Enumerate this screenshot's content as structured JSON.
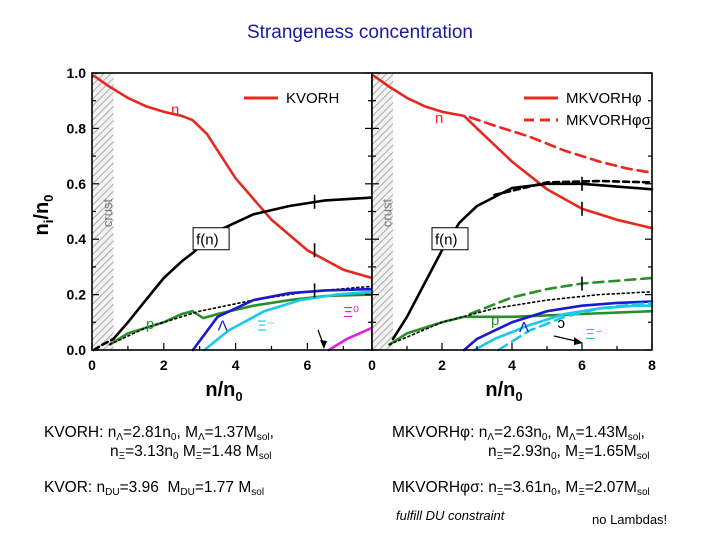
{
  "title": "Strangeness concentration",
  "chart_data": [
    {
      "type": "line",
      "panel": "left",
      "xlabel": "n/n0",
      "ylabel": "ni/n0",
      "xlim": [
        0,
        7.8
      ],
      "ylim": [
        0.0,
        1.0
      ],
      "xticks": [
        0,
        2,
        4,
        6
      ],
      "yticks": [
        0.0,
        0.2,
        0.4,
        0.6,
        0.8,
        1.0
      ],
      "ytick_labels": [
        "0.0",
        "0.2",
        "0.4",
        "0.6",
        "0.8",
        "1.0"
      ],
      "crust_band": [
        0.0,
        0.6
      ],
      "crust_label": "crust",
      "legend": [
        {
          "label": "KVORH",
          "color": "#e8281e"
        }
      ],
      "series": [
        {
          "name": "n",
          "color": "#e8281e",
          "dash": "",
          "x": [
            0.05,
            0.5,
            1.0,
            1.5,
            2.0,
            2.5,
            2.8,
            3.2,
            4.0,
            5.0,
            6.0,
            7.0,
            7.8
          ],
          "y": [
            0.99,
            0.95,
            0.91,
            0.88,
            0.86,
            0.845,
            0.83,
            0.78,
            0.62,
            0.47,
            0.36,
            0.29,
            0.26
          ]
        },
        {
          "name": "f(n)",
          "color": "#000000",
          "dash": "",
          "x": [
            0.6,
            1.0,
            1.5,
            2.0,
            2.5,
            2.8,
            3.5,
            4.5,
            5.5,
            6.5,
            7.8
          ],
          "y": [
            0.04,
            0.1,
            0.18,
            0.26,
            0.32,
            0.35,
            0.43,
            0.49,
            0.52,
            0.54,
            0.55
          ]
        },
        {
          "name": "f(n) continuation",
          "color": "#000000",
          "dash": "6 4",
          "x": [
            0.05,
            0.3,
            0.6
          ],
          "y": [
            0.0,
            0.02,
            0.04
          ]
        },
        {
          "name": "p",
          "color": "#2a8f2a",
          "dash": "",
          "x": [
            0.5,
            1.0,
            2.0,
            2.5,
            2.8,
            3.1,
            3.5,
            4.5,
            5.5,
            6.5,
            7.8
          ],
          "y": [
            0.02,
            0.06,
            0.1,
            0.13,
            0.14,
            0.115,
            0.13,
            0.16,
            0.18,
            0.195,
            0.2
          ]
        },
        {
          "name": "KVOR p",
          "color": "#000000",
          "dash": "2 3",
          "x": [
            0.5,
            1.5,
            3.0,
            4.5,
            6.0,
            7.8
          ],
          "y": [
            0.02,
            0.08,
            0.14,
            0.18,
            0.21,
            0.23
          ]
        },
        {
          "name": "Λ",
          "color": "#1a1acc",
          "dash": "",
          "x": [
            2.81,
            3.5,
            4.5,
            5.5,
            6.5,
            7.8
          ],
          "y": [
            0.0,
            0.12,
            0.18,
            0.205,
            0.215,
            0.22
          ]
        },
        {
          "name": "Ξ⁻",
          "color": "#1cc8e8",
          "dash": "",
          "x": [
            3.13,
            3.8,
            4.8,
            5.8,
            6.8,
            7.8
          ],
          "y": [
            0.0,
            0.07,
            0.14,
            0.18,
            0.2,
            0.21
          ]
        },
        {
          "name": "Ξ⁰",
          "color": "#e020e0",
          "dash": "",
          "x": [
            6.6,
            7.1,
            7.8
          ],
          "y": [
            0.0,
            0.04,
            0.08
          ]
        }
      ],
      "labels": [
        {
          "text": "n",
          "color": "#e8281e",
          "x": 2.2,
          "y": 0.85
        },
        {
          "text": "f(n)",
          "color": "#000000",
          "x": 2.9,
          "y": 0.38,
          "boxed": true
        },
        {
          "text": "p",
          "color": "#2a8f2a",
          "x": 1.5,
          "y": 0.075
        },
        {
          "text": "Λ",
          "color": "#1a1acc",
          "x": 3.5,
          "y": 0.07
        },
        {
          "text": "Ξ⁻",
          "color": "#1cc8e8",
          "x": 4.6,
          "y": 0.07
        },
        {
          "text": "Ξ⁰",
          "color": "#e020e0",
          "x": 7.0,
          "y": 0.12
        }
      ],
      "markers": [
        {
          "x": 6.2,
          "y": 0.535
        },
        {
          "x": 6.2,
          "y": 0.36
        },
        {
          "x": 6.2,
          "y": 0.215
        }
      ]
    },
    {
      "type": "line",
      "panel": "right",
      "xlabel": "n/n0",
      "ylabel": "",
      "xlim": [
        0,
        8
      ],
      "ylim": [
        0.0,
        1.0
      ],
      "xticks": [
        0,
        2,
        4,
        6,
        8
      ],
      "crust_band": [
        0.0,
        0.6
      ],
      "crust_label": "crust",
      "legend": [
        {
          "label": "MKVORHφ",
          "color": "#e8281e",
          "dash": ""
        },
        {
          "label": "MKVORHφσ",
          "color": "#e8281e",
          "dash": "10 6"
        }
      ],
      "series": [
        {
          "name": "n (MKVORHφ)",
          "color": "#e8281e",
          "dash": "",
          "x": [
            0.05,
            0.5,
            1.0,
            1.5,
            2.0,
            2.63,
            3.0,
            4.0,
            5.0,
            6.0,
            7.0,
            8.0
          ],
          "y": [
            0.99,
            0.95,
            0.91,
            0.88,
            0.86,
            0.845,
            0.8,
            0.68,
            0.58,
            0.51,
            0.47,
            0.44
          ]
        },
        {
          "name": "n (MKVORHφσ)",
          "color": "#e8281e",
          "dash": "10 6",
          "x": [
            2.8,
            3.5,
            4.5,
            5.5,
            6.5,
            7.3,
            8.0
          ],
          "y": [
            0.84,
            0.81,
            0.77,
            0.72,
            0.68,
            0.655,
            0.64
          ]
        },
        {
          "name": "f(n)",
          "color": "#000000",
          "dash": "",
          "x": [
            0.6,
            1.0,
            1.5,
            2.0,
            2.5,
            3.0,
            4.0,
            5.0,
            6.0,
            7.0,
            8.0
          ],
          "y": [
            0.04,
            0.12,
            0.24,
            0.36,
            0.46,
            0.52,
            0.585,
            0.6,
            0.6,
            0.59,
            0.58
          ]
        },
        {
          "name": "f(n) dashed",
          "color": "#000000",
          "dash": "6 4",
          "x": [
            3.5,
            5.0,
            6.5,
            8.0
          ],
          "y": [
            0.56,
            0.605,
            0.61,
            0.605
          ]
        },
        {
          "name": "p (MKVORHφ)",
          "color": "#2a8f2a",
          "dash": "",
          "x": [
            0.5,
            1.0,
            2.0,
            2.63,
            3.0,
            4.0,
            5.0,
            6.0,
            7.0,
            8.0
          ],
          "y": [
            0.02,
            0.06,
            0.1,
            0.12,
            0.12,
            0.12,
            0.125,
            0.13,
            0.135,
            0.14
          ]
        },
        {
          "name": "p (MKVORHφσ)",
          "color": "#2a8f2a",
          "dash": "10 6",
          "x": [
            2.8,
            4.0,
            5.0,
            6.0,
            7.0,
            8.0
          ],
          "y": [
            0.13,
            0.19,
            0.22,
            0.24,
            0.25,
            0.26
          ]
        },
        {
          "name": "KVOR p",
          "color": "#000000",
          "dash": "2 3",
          "x": [
            0.5,
            2.0,
            3.5,
            5.0,
            6.5,
            8.0
          ],
          "y": [
            0.02,
            0.1,
            0.15,
            0.18,
            0.2,
            0.21
          ]
        },
        {
          "name": "Λ (MKVORHφ)",
          "color": "#1a1acc",
          "dash": "",
          "x": [
            2.63,
            3.0,
            4.0,
            5.0,
            6.0,
            7.0,
            8.0
          ],
          "y": [
            0.0,
            0.04,
            0.1,
            0.14,
            0.16,
            0.17,
            0.175
          ]
        },
        {
          "name": "Ξ⁻ (MKVORHφ)",
          "color": "#1cc8e8",
          "dash": "",
          "x": [
            2.93,
            3.5,
            4.5,
            5.5,
            6.5,
            7.5,
            8.0
          ],
          "y": [
            0.0,
            0.04,
            0.09,
            0.13,
            0.15,
            0.16,
            0.16
          ]
        },
        {
          "name": "Ξ⁻ (MKVORHφσ)",
          "color": "#1cc8e8",
          "dash": "10 6",
          "x": [
            3.61,
            4.5,
            5.5,
            6.5,
            7.5,
            8.0
          ],
          "y": [
            0.0,
            0.07,
            0.12,
            0.15,
            0.165,
            0.17
          ]
        }
      ],
      "labels": [
        {
          "text": "n",
          "color": "#e8281e",
          "x": 1.8,
          "y": 0.82
        },
        {
          "text": "f(n)",
          "color": "#000000",
          "x": 1.8,
          "y": 0.38,
          "boxed": true
        },
        {
          "text": "p",
          "color": "#2a8f2a",
          "x": 3.4,
          "y": 0.09
        },
        {
          "text": "Λ",
          "color": "#1a1acc",
          "x": 4.2,
          "y": 0.065
        },
        {
          "text": "ɔ",
          "color": "#000000",
          "x": 5.3,
          "y": 0.08
        },
        {
          "text": "Ξ⁻",
          "color": "#1cc8e8",
          "x": 6.1,
          "y": 0.04
        }
      ],
      "markers": [
        {
          "x": 6.0,
          "y": 0.6
        },
        {
          "x": 6.0,
          "y": 0.51
        },
        {
          "x": 6.0,
          "y": 0.24
        }
      ]
    }
  ],
  "notes": {
    "left_1a": "KVORH: nΛ=2.81n0, MΛ=1.37Msol,",
    "left_1b": "nΞ=3.13n0 MΞ=1.48 Msol",
    "left_2": "KVOR: nDU=3.96 MDU=1.77 Msol",
    "right_1a": "MKVORHφ: nΛ=2.63n0, MΛ=1.43Msol,",
    "right_1b": "nΞ=2.93n0, MΞ=1.65Msol",
    "right_2": "MKVORHφσ: nΞ=3.61n0, MΞ=2.07Msol",
    "fulfill": "fulfill DU constraint",
    "no_lambdas": "no Lambdas!"
  }
}
